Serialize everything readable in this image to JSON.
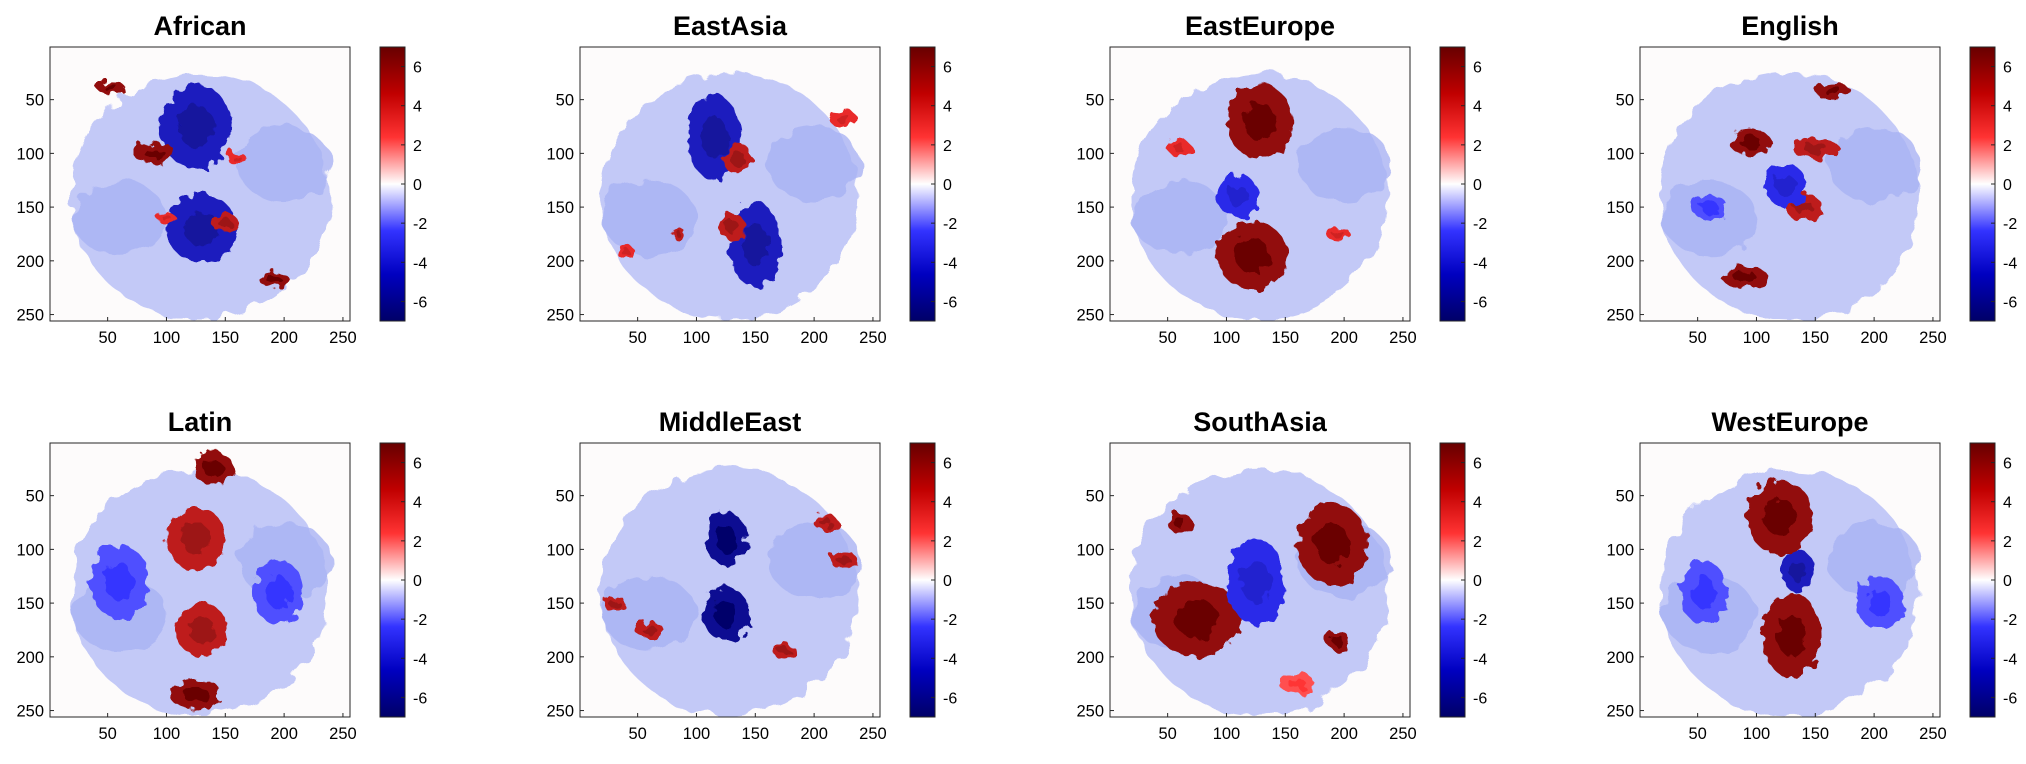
{
  "chart_data": [
    {
      "type": "heatmap",
      "title": "African",
      "xlim": [
        1,
        256
      ],
      "ylim": [
        1,
        256
      ],
      "xticks": [
        "50",
        "100",
        "150",
        "200",
        "250"
      ],
      "yticks": [
        "50",
        "100",
        "150",
        "200",
        "250"
      ],
      "y_reversed": true,
      "colorbar": {
        "min": -7,
        "max": 7,
        "ticks": [
          "6",
          "4",
          "2",
          "0",
          "-2",
          "-4",
          "-6"
        ]
      },
      "blobs": [
        {
          "x": 125,
          "y": 75,
          "rx": 30,
          "ry": 40,
          "v": -5
        },
        {
          "x": 130,
          "y": 170,
          "rx": 30,
          "ry": 32,
          "v": -5
        },
        {
          "x": 90,
          "y": 100,
          "rx": 18,
          "ry": 10,
          "v": 6
        },
        {
          "x": 150,
          "y": 165,
          "rx": 12,
          "ry": 8,
          "v": 5
        },
        {
          "x": 52,
          "y": 38,
          "rx": 12,
          "ry": 6,
          "v": 6
        },
        {
          "x": 192,
          "y": 218,
          "rx": 13,
          "ry": 7,
          "v": 6
        },
        {
          "x": 160,
          "y": 105,
          "rx": 8,
          "ry": 6,
          "v": 4
        },
        {
          "x": 100,
          "y": 160,
          "rx": 8,
          "ry": 5,
          "v": 4
        }
      ]
    },
    {
      "type": "heatmap",
      "title": "EastAsia",
      "xlim": [
        1,
        256
      ],
      "ylim": [
        1,
        256
      ],
      "xticks": [
        "50",
        "100",
        "150",
        "200",
        "250"
      ],
      "yticks": [
        "50",
        "100",
        "150",
        "200",
        "250"
      ],
      "y_reversed": true,
      "colorbar": {
        "min": -7,
        "max": 7,
        "ticks": [
          "6",
          "4",
          "2",
          "0",
          "-2",
          "-4",
          "-6"
        ]
      },
      "blobs": [
        {
          "x": 115,
          "y": 85,
          "rx": 22,
          "ry": 40,
          "v": -5
        },
        {
          "x": 150,
          "y": 185,
          "rx": 22,
          "ry": 40,
          "v": -5
        },
        {
          "x": 135,
          "y": 105,
          "rx": 12,
          "ry": 15,
          "v": 5
        },
        {
          "x": 130,
          "y": 168,
          "rx": 12,
          "ry": 12,
          "v": 5
        },
        {
          "x": 225,
          "y": 68,
          "rx": 12,
          "ry": 8,
          "v": 4
        },
        {
          "x": 40,
          "y": 192,
          "rx": 8,
          "ry": 6,
          "v": 4
        },
        {
          "x": 85,
          "y": 175,
          "rx": 6,
          "ry": 5,
          "v": 5
        }
      ]
    },
    {
      "type": "heatmap",
      "title": "EastEurope",
      "xlim": [
        1,
        256
      ],
      "ylim": [
        1,
        256
      ],
      "xticks": [
        "50",
        "100",
        "150",
        "200",
        "250"
      ],
      "yticks": [
        "50",
        "100",
        "150",
        "200",
        "250"
      ],
      "y_reversed": true,
      "colorbar": {
        "min": -7,
        "max": 7,
        "ticks": [
          "6",
          "4",
          "2",
          "0",
          "-2",
          "-4",
          "-6"
        ]
      },
      "blobs": [
        {
          "x": 128,
          "y": 70,
          "rx": 28,
          "ry": 35,
          "v": 6
        },
        {
          "x": 122,
          "y": 195,
          "rx": 30,
          "ry": 32,
          "v": 6
        },
        {
          "x": 110,
          "y": 140,
          "rx": 18,
          "ry": 20,
          "v": -4
        },
        {
          "x": 60,
          "y": 95,
          "rx": 10,
          "ry": 8,
          "v": 4
        },
        {
          "x": 195,
          "y": 175,
          "rx": 10,
          "ry": 7,
          "v": 4
        }
      ]
    },
    {
      "type": "heatmap",
      "title": "English",
      "xlim": [
        1,
        256
      ],
      "ylim": [
        1,
        256
      ],
      "xticks": [
        "50",
        "100",
        "150",
        "200",
        "250"
      ],
      "yticks": [
        "50",
        "100",
        "150",
        "200",
        "250"
      ],
      "y_reversed": true,
      "colorbar": {
        "min": -7,
        "max": 7,
        "ticks": [
          "6",
          "4",
          "2",
          "0",
          "-2",
          "-4",
          "-6"
        ]
      },
      "blobs": [
        {
          "x": 95,
          "y": 90,
          "rx": 18,
          "ry": 12,
          "v": 6
        },
        {
          "x": 150,
          "y": 95,
          "rx": 20,
          "ry": 10,
          "v": 5
        },
        {
          "x": 140,
          "y": 150,
          "rx": 16,
          "ry": 12,
          "v": 5
        },
        {
          "x": 90,
          "y": 215,
          "rx": 20,
          "ry": 10,
          "v": 6
        },
        {
          "x": 165,
          "y": 42,
          "rx": 15,
          "ry": 8,
          "v": 6
        },
        {
          "x": 125,
          "y": 130,
          "rx": 18,
          "ry": 20,
          "v": -4
        },
        {
          "x": 60,
          "y": 150,
          "rx": 15,
          "ry": 12,
          "v": -3
        }
      ]
    },
    {
      "type": "heatmap",
      "title": "Latin",
      "xlim": [
        1,
        256
      ],
      "ylim": [
        1,
        256
      ],
      "xticks": [
        "50",
        "100",
        "150",
        "200",
        "250"
      ],
      "yticks": [
        "50",
        "100",
        "150",
        "200",
        "250"
      ],
      "y_reversed": true,
      "colorbar": {
        "min": -7,
        "max": 7,
        "ticks": [
          "6",
          "4",
          "2",
          "0",
          "-2",
          "-4",
          "-6"
        ]
      },
      "blobs": [
        {
          "x": 140,
          "y": 25,
          "rx": 18,
          "ry": 15,
          "v": 6
        },
        {
          "x": 125,
          "y": 90,
          "rx": 25,
          "ry": 30,
          "v": 5
        },
        {
          "x": 130,
          "y": 175,
          "rx": 22,
          "ry": 25,
          "v": 5
        },
        {
          "x": 125,
          "y": 235,
          "rx": 22,
          "ry": 15,
          "v": 6
        },
        {
          "x": 60,
          "y": 130,
          "rx": 25,
          "ry": 35,
          "v": -3
        },
        {
          "x": 195,
          "y": 140,
          "rx": 22,
          "ry": 30,
          "v": -3
        }
      ]
    },
    {
      "type": "heatmap",
      "title": "MiddleEast",
      "xlim": [
        1,
        256
      ],
      "ylim": [
        1,
        256
      ],
      "xticks": [
        "50",
        "100",
        "150",
        "200",
        "250"
      ],
      "yticks": [
        "50",
        "100",
        "150",
        "200",
        "250"
      ],
      "y_reversed": true,
      "colorbar": {
        "min": -7,
        "max": 7,
        "ticks": [
          "6",
          "4",
          "2",
          "0",
          "-2",
          "-4",
          "-6"
        ]
      },
      "blobs": [
        {
          "x": 125,
          "y": 90,
          "rx": 18,
          "ry": 25,
          "v": -6
        },
        {
          "x": 125,
          "y": 160,
          "rx": 20,
          "ry": 25,
          "v": -6
        },
        {
          "x": 210,
          "y": 75,
          "rx": 10,
          "ry": 8,
          "v": 5
        },
        {
          "x": 225,
          "y": 110,
          "rx": 11,
          "ry": 9,
          "v": 5
        },
        {
          "x": 30,
          "y": 150,
          "rx": 10,
          "ry": 7,
          "v": 5
        },
        {
          "x": 60,
          "y": 175,
          "rx": 12,
          "ry": 8,
          "v": 5
        },
        {
          "x": 175,
          "y": 195,
          "rx": 10,
          "ry": 7,
          "v": 5
        }
      ]
    },
    {
      "type": "heatmap",
      "title": "SouthAsia",
      "xlim": [
        1,
        256
      ],
      "ylim": [
        1,
        256
      ],
      "xticks": [
        "50",
        "100",
        "150",
        "200",
        "250"
      ],
      "yticks": [
        "50",
        "100",
        "150",
        "200",
        "250"
      ],
      "y_reversed": true,
      "colorbar": {
        "min": -7,
        "max": 7,
        "ticks": [
          "6",
          "4",
          "2",
          "0",
          "-2",
          "-4",
          "-6"
        ]
      },
      "blobs": [
        {
          "x": 75,
          "y": 165,
          "rx": 38,
          "ry": 35,
          "v": 6
        },
        {
          "x": 190,
          "y": 95,
          "rx": 30,
          "ry": 38,
          "v": 6
        },
        {
          "x": 125,
          "y": 130,
          "rx": 25,
          "ry": 40,
          "v": -4
        },
        {
          "x": 60,
          "y": 75,
          "rx": 10,
          "ry": 10,
          "v": 6
        },
        {
          "x": 195,
          "y": 185,
          "rx": 10,
          "ry": 9,
          "v": 6
        },
        {
          "x": 160,
          "y": 225,
          "rx": 15,
          "ry": 10,
          "v": 3
        }
      ]
    },
    {
      "type": "heatmap",
      "title": "WestEurope",
      "xlim": [
        1,
        256
      ],
      "ylim": [
        1,
        256
      ],
      "xticks": [
        "50",
        "100",
        "150",
        "200",
        "250"
      ],
      "yticks": [
        "50",
        "100",
        "150",
        "200",
        "250"
      ],
      "y_reversed": true,
      "colorbar": {
        "min": -7,
        "max": 7,
        "ticks": [
          "6",
          "4",
          "2",
          "0",
          "-2",
          "-4",
          "-6"
        ]
      },
      "blobs": [
        {
          "x": 120,
          "y": 70,
          "rx": 28,
          "ry": 35,
          "v": 6
        },
        {
          "x": 130,
          "y": 180,
          "rx": 25,
          "ry": 40,
          "v": 6
        },
        {
          "x": 135,
          "y": 120,
          "rx": 14,
          "ry": 20,
          "v": -5
        },
        {
          "x": 55,
          "y": 140,
          "rx": 20,
          "ry": 30,
          "v": -3
        },
        {
          "x": 205,
          "y": 150,
          "rx": 20,
          "ry": 25,
          "v": -3
        }
      ]
    }
  ]
}
